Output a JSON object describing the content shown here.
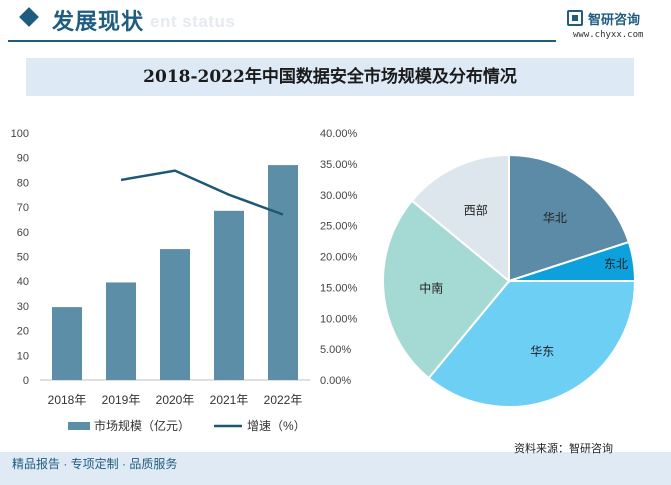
{
  "header": {
    "title": "发展现状",
    "ghost_text": "ent status",
    "brand_name": "智研咨询",
    "brand_url": "www.chyxx.com"
  },
  "chart_title": "2018-2022年中国数据安全市场规模及分布情况",
  "chart_data": [
    {
      "type": "bar",
      "categories": [
        "2018年",
        "2019年",
        "2020年",
        "2021年",
        "2022年"
      ],
      "series": [
        {
          "name": "市场规模（亿元）",
          "type": "bar",
          "axis": "left",
          "color": "#5d8ea8",
          "values": [
            29.5,
            39.5,
            53,
            68.5,
            87
          ]
        },
        {
          "name": "增速（%）",
          "type": "line",
          "axis": "right",
          "color": "#1c5873",
          "values": [
            null,
            32.4,
            33.9,
            30.0,
            26.8
          ]
        }
      ],
      "left_axis": {
        "min": 0,
        "max": 100,
        "ticks": [
          "0",
          "10",
          "20",
          "30",
          "40",
          "50",
          "60",
          "70",
          "80",
          "90",
          "100"
        ]
      },
      "right_axis": {
        "min": 0,
        "max": 40,
        "ticks": [
          "0.00%",
          "5.00%",
          "10.00%",
          "15.00%",
          "20.00%",
          "25.00%",
          "30.00%",
          "35.00%",
          "40.00%"
        ]
      },
      "legend_position": "bottom",
      "grid": false
    },
    {
      "type": "pie",
      "labels": [
        "华北",
        "东北",
        "华东",
        "中南",
        "西部"
      ],
      "values": [
        20,
        5,
        36,
        25,
        14
      ],
      "colors": [
        "#5b8ba6",
        "#0ca0dc",
        "#6ecff5",
        "#a5d9d4",
        "#dde6ec"
      ]
    }
  ],
  "footer": {
    "left_text": "精品报告 · 专项定制 · 品质服务",
    "source": "资料来源：智研咨询"
  },
  "colors": {
    "brand": "#1f5d80",
    "title_band": "#dde9f5",
    "footer_band": "#dfeaf4"
  }
}
